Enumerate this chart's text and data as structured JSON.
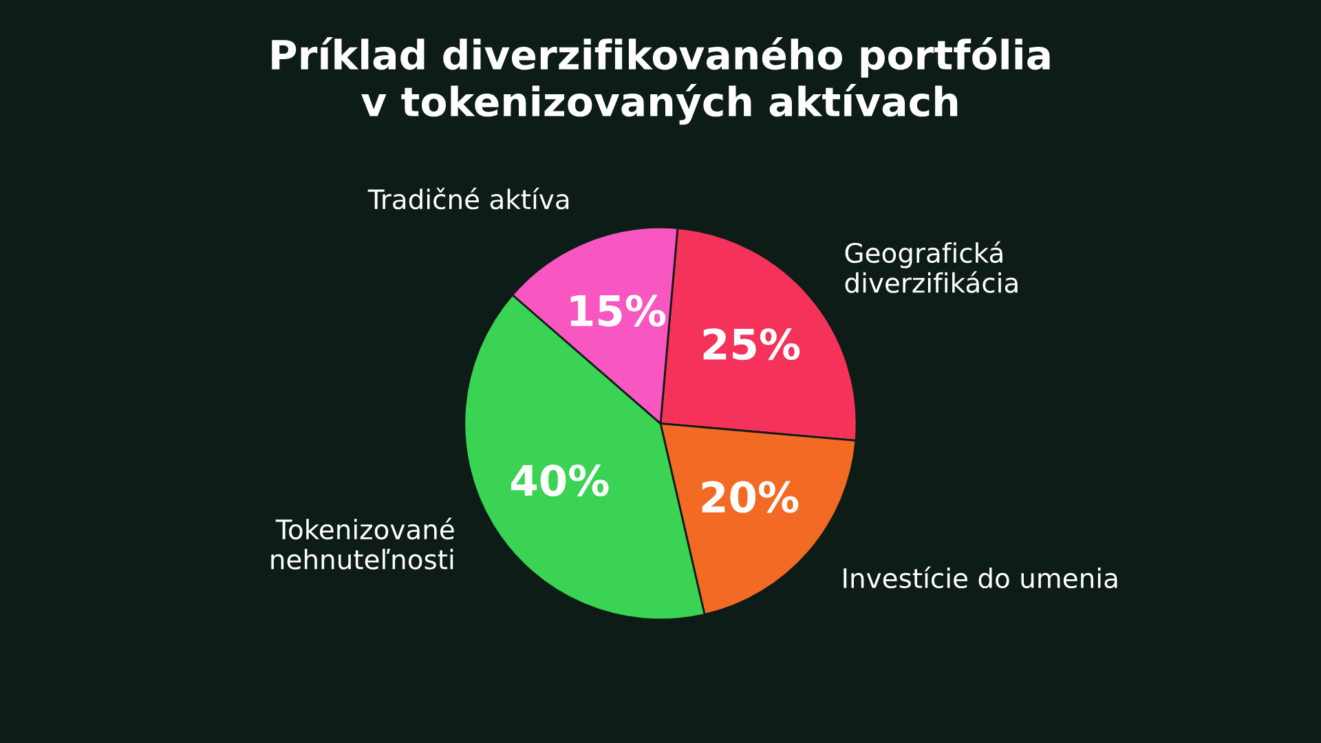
{
  "chart_data": {
    "type": "pie",
    "title": "Príklad diverzifikovaného portfólia\nv tokenizovaných aktívach",
    "categories": [
      "Geografická\ndiverzifikácia",
      "Investície do umenia",
      "Tokenizované\nnehnuteľnosti",
      "Tradičné aktíva"
    ],
    "values": [
      25,
      20,
      40,
      15
    ],
    "colors": [
      "#f5325a",
      "#f26a24",
      "#3ad353",
      "#f857c1"
    ],
    "value_labels": [
      "25%",
      "20%",
      "40%",
      "15%"
    ],
    "legend": false
  }
}
